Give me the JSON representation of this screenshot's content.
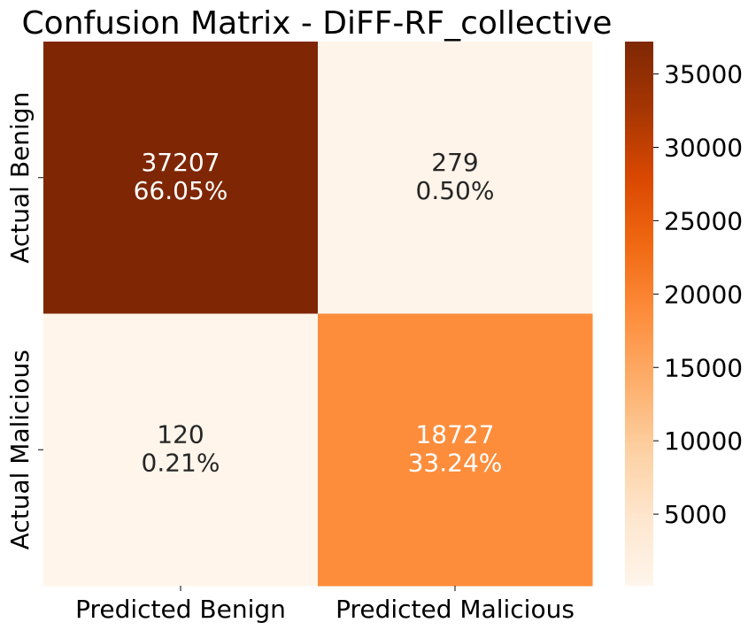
{
  "chart_data": {
    "type": "heatmap",
    "title": "Confusion Matrix - DiFF-RF_collective",
    "row_labels": [
      "Actual Benign",
      "Actual Malicious"
    ],
    "col_labels": [
      "Predicted Benign",
      "Predicted Malicious"
    ],
    "values": [
      [
        37207,
        279
      ],
      [
        120,
        18727
      ]
    ],
    "percent_labels": [
      [
        "66.05%",
        "0.50%"
      ],
      [
        "0.21%",
        "33.24%"
      ]
    ],
    "colormap": "Oranges",
    "colorbar": {
      "range": [
        120,
        37207
      ],
      "ticks": [
        5000,
        10000,
        15000,
        20000,
        25000,
        30000,
        35000
      ],
      "tick_labels": [
        "5000",
        "10000",
        "15000",
        "20000",
        "25000",
        "30000",
        "35000"
      ]
    },
    "colors": {
      "low": "#fff5eb",
      "high": "#7f2704",
      "text_dark": "#262626",
      "text_light": "#ffffff"
    }
  }
}
